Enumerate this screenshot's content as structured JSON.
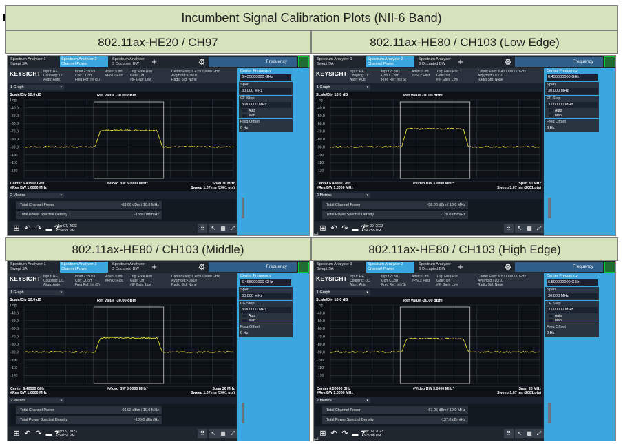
{
  "document": {
    "title": "Incumbent Signal Calibration Plots (NII-6 Band)",
    "return_mark": "↵"
  },
  "cells": [
    {
      "heading": "802.11ax-HE20 / CH97",
      "tabs": [
        "Spectrum Analyzer 1\nSwept SA",
        "Spectrum Analyzer 2\nChannel Power",
        "Spectrum Analyzer 3\nOccupied BW"
      ],
      "freq_button": "Frequency",
      "brand": "KEYSIGHT",
      "input_info": [
        "Input: RF\nCoupling: DC\nAlign: Auto",
        "Input Z: 50 Ω\nCorr CCorr\nFreq Ref: Int (S)",
        "Atten: 0 dB\n#PNO: Fast",
        "Trig: Free Run\nGate: Off\n#IF Gain: Low",
        "Center Freq: 6.435000000 GHz\nAvg|Hold:>10/10\nRadio Std: None"
      ],
      "settings": "Settings",
      "sidebar": {
        "center_label": "Center Frequency",
        "center_value": "6.435000000 GHz",
        "span_label": "Span",
        "span_value": "30.000 MHz",
        "cf_label": "CF Step",
        "cf_value": "3.000000 MHz",
        "auto": "Auto",
        "man": "Man",
        "offset_label": "Freq Offset",
        "offset_value": "0 Hz"
      },
      "graph_select": "1 Graph",
      "scale": "Scale/Div 10.0 dB",
      "log": "Log",
      "ref": "Ref Value -30.00 dBm",
      "yticks": [
        "-40.0",
        "-50.0",
        "-60.0",
        "-70.0",
        "-80.0",
        "-90.0",
        "-100",
        "-110",
        "-120"
      ],
      "center": "Center 6.43500 GHz",
      "res_bw": "#Res BW 1.0000 MHz",
      "video_bw": "#Video BW 3.0000 MHz*",
      "span": "Span 30 MHz",
      "sweep": "Sweep 1.07 ms (2001 pts)",
      "metrics_select": "2 Metrics",
      "metric_tcp_label": "Total Channel Power",
      "metric_tcp_value": "-63.00 dBm / 10.0 MHz",
      "metric_psd_label": "Total Power Spectral Density",
      "metric_psd_value": "-133.0 dBm/Hz",
      "date": "Apr 07, 2023",
      "time": "5:58:27 PM",
      "plateau": -69
    },
    {
      "heading": "802.11ax-HE80 / CH103 (Low Edge)",
      "tabs": [
        "Spectrum Analyzer 1\nSwept SA",
        "Spectrum Analyzer 2\nChannel Power",
        "Spectrum Analyzer 3\nOccupied BW"
      ],
      "freq_button": "Frequency",
      "brand": "KEYSIGHT",
      "input_info": [
        "Input: RF\nCoupling: DC\nAlign: Auto",
        "Input Z: 50 Ω\nCorr CCorr\nFreq Ref: Int (S)",
        "Atten: 0 dB\n#PNO: Fast",
        "Trig: Free Run\nGate: Off\n#IF Gain: Low",
        "Center Freq: 6.430000000 GHz\nAvg|Hold:>10/10\nRadio Std: None"
      ],
      "settings": "Settings",
      "sidebar": {
        "center_label": "Center Frequency",
        "center_value": "6.430000000 GHz",
        "span_label": "Span",
        "span_value": "30.000 MHz",
        "cf_label": "CF Step",
        "cf_value": "3.000000 MHz",
        "auto": "Auto",
        "man": "Man",
        "offset_label": "Freq Offset",
        "offset_value": "0 Hz"
      },
      "graph_select": "1 Graph",
      "scale": "Scale/Div 10.0 dB",
      "log": "Log",
      "ref": "Ref Value -30.00 dBm",
      "yticks": [
        "-40.0",
        "-50.0",
        "-60.0",
        "-70.0",
        "-80.0",
        "-90.0",
        "-100",
        "-110",
        "-120"
      ],
      "center": "Center 6.43000 GHz",
      "res_bw": "#Res BW 1.0000 MHz",
      "video_bw": "#Video BW 3.0000 MHz*",
      "span": "Span 30 MHz",
      "sweep": "Sweep 1.07 ms (2001 pts)",
      "metrics_select": "2 Metrics",
      "metric_tcp_label": "Total Channel Power",
      "metric_tcp_value": "-58.00 dBm / 10.0 MHz",
      "metric_psd_label": "Total Power Spectral Density",
      "metric_psd_value": "-128.0 dBm/Hz",
      "date": "Apr 09, 2023",
      "time": "3:42:55 PM",
      "plateau": -67
    },
    {
      "heading": "802.11ax-HE80 / CH103 (Middle)",
      "tabs": [
        "Spectrum Analyzer 1\nSwept SA",
        "Spectrum Analyzer 2\nChannel Power",
        "Spectrum Analyzer 3\nOccupied BW"
      ],
      "freq_button": "Frequency",
      "brand": "KEYSIGHT",
      "input_info": [
        "Input: RF\nCoupling: DC\nAlign: Auto",
        "Input Z: 50 Ω\nCorr CCorr\nFreq Ref: Int (S)",
        "Atten: 0 dB\n#PNO: Fast",
        "Trig: Free Run\nGate: Off\n#IF Gain: Low",
        "Center Freq: 6.465000000 GHz\nAvg|Hold:>10/10\nRadio Std: None"
      ],
      "settings": "Settings",
      "sidebar": {
        "center_label": "Center Frequency",
        "center_value": "6.465000000 GHz",
        "span_label": "Span",
        "span_value": "30.000 MHz",
        "cf_label": "CF Step",
        "cf_value": "3.000000 MHz",
        "auto": "Auto",
        "man": "Man",
        "offset_label": "Freq Offset",
        "offset_value": "0 Hz"
      },
      "graph_select": "1 Graph",
      "scale": "Scale/Div 10.0 dB",
      "log": "Log",
      "ref": "Ref Value -30.00 dBm",
      "yticks": [
        "-40.0",
        "-50.0",
        "-60.0",
        "-70.0",
        "-80.0",
        "-90.0",
        "-100",
        "-110",
        "-120"
      ],
      "center": "Center 6.46500 GHz",
      "res_bw": "#Res BW 1.0000 MHz",
      "video_bw": "#Video BW 3.0000 MHz*",
      "span": "Span 30 MHz",
      "sweep": "Sweep 1.07 ms (2001 pts)",
      "metrics_select": "2 Metrics",
      "metric_tcp_label": "Total Channel Power",
      "metric_tcp_value": "-66.02 dBm / 10.0 MHz",
      "metric_psd_label": "Total Power Spectral Density",
      "metric_psd_value": "-136.0 dBm/Hz",
      "date": "Apr 09, 2023",
      "time": "3:40:57 PM",
      "plateau": -72
    },
    {
      "heading": "802.11ax-HE80 / CH103 (High Edge)",
      "tabs": [
        "Spectrum Analyzer 1\nSwept SA",
        "Spectrum Analyzer 2\nChannel Power",
        "Spectrum Analyzer 3\nOccupied BW"
      ],
      "freq_button": "Frequency",
      "brand": "KEYSIGHT",
      "input_info": [
        "Input: RF\nCoupling: DC\nAlign: Auto",
        "Input Z: 50 Ω\nCorr CCorr\nFreq Ref: Int (S)",
        "Atten: 0 dB\n#PNO: Fast",
        "Trig: Free Run\nGate: Off\n#IF Gain: Low",
        "Center Freq: 6.500000000 GHz\nAvg|Hold:>10/10\nRadio Std: None"
      ],
      "settings": "Settings",
      "sidebar": {
        "center_label": "Center Frequency",
        "center_value": "6.500000000 GHz",
        "span_label": "Span",
        "span_value": "30.000 MHz",
        "cf_label": "CF Step",
        "cf_value": "3.000000 MHz",
        "auto": "Auto",
        "man": "Man",
        "offset_label": "Freq Offset",
        "offset_value": "0 Hz"
      },
      "graph_select": "1 Graph",
      "scale": "Scale/Div 10.0 dB",
      "log": "Log",
      "ref": "Ref Value -30.00 dBm",
      "yticks": [
        "-40.0",
        "-50.0",
        "-60.0",
        "-70.0",
        "-80.0",
        "-90.0",
        "-100",
        "-110",
        "-120"
      ],
      "center": "Center 6.50000 GHz",
      "res_bw": "#Res BW 1.0000 MHz",
      "video_bw": "#Video BW 3.0000 MHz*",
      "span": "Span 30 MHz",
      "sweep": "Sweep 1.07 ms (2001 pts)",
      "metrics_select": "2 Metrics",
      "metric_tcp_label": "Total Channel Power",
      "metric_tcp_value": "-67.05 dBm / 10.0 MHz",
      "metric_psd_label": "Total Power Spectral Density",
      "metric_psd_value": "-137.0 dBm/Hz",
      "date": "Apr 09, 2023",
      "time": "3:39:08 PM",
      "plateau": -73
    }
  ],
  "colors": {
    "trace": "#e8e23a",
    "accent": "#3aa7de",
    "header_bg": "#d7e3bc"
  },
  "icons": [
    "windows-icon",
    "undo-icon",
    "redo-icon",
    "folder-icon",
    "help-icon",
    "keyboard-icon",
    "cursor-icon",
    "grid-icon",
    "fullscreen-icon",
    "gear-icon",
    "plus-icon"
  ]
}
